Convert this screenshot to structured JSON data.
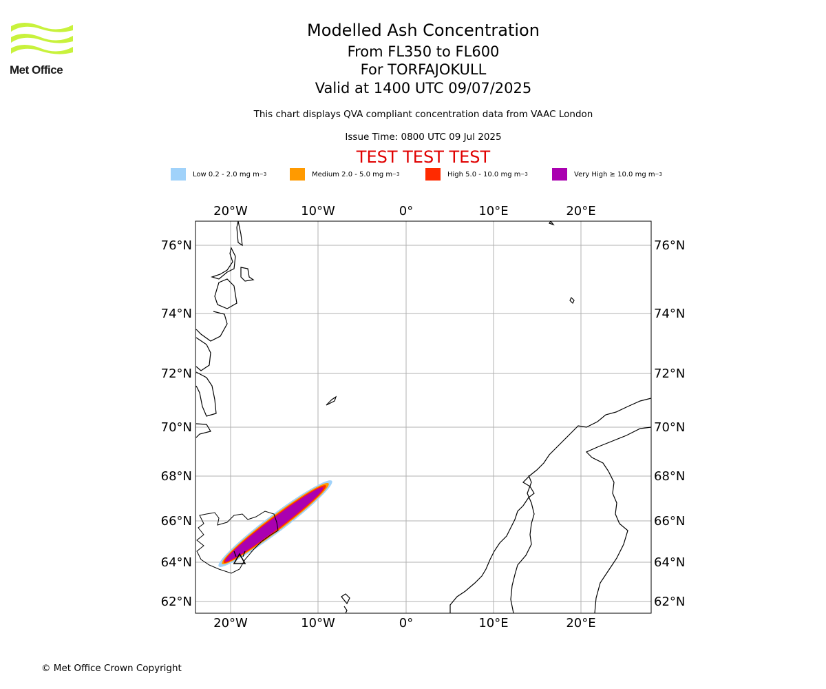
{
  "header": {
    "logo_text": "Met Office",
    "title": "Modelled Ash Concentration",
    "level_range": "From FL350 to FL600",
    "volcano_line": "For TORFAJOKULL",
    "valid_line": "Valid at 1400 UTC 09/07/2025",
    "compliance_note": "This chart displays QVA compliant concentration data from VAAC London",
    "issue_time": "Issue Time: 0800 UTC 09 Jul 2025",
    "test_banner": "TEST TEST TEST"
  },
  "legend": [
    {
      "label": "Low 0.2 - 2.0 mg m",
      "sup": "−3",
      "color": "#a0d2fa"
    },
    {
      "label": "Medium 2.0 - 5.0 mg m",
      "sup": "−3",
      "color": "#ff9a00"
    },
    {
      "label": "High 5.0 - 10.0 mg m",
      "sup": "−3",
      "color": "#ff2a00"
    },
    {
      "label": "Very High  ≥  10.0 mg m",
      "sup": "−3",
      "color": "#aa00b0"
    }
  ],
  "map": {
    "lon_ticks": [
      "20°W",
      "10°W",
      "0°",
      "10°E",
      "20°E"
    ],
    "lat_ticks": [
      "76°N",
      "74°N",
      "72°N",
      "70°N",
      "68°N",
      "66°N",
      "64°N",
      "62°N"
    ],
    "gridlines": true,
    "volcano_marker": "triangle-icon"
  },
  "footer": {
    "copyright": "© Met Office Crown Copyright"
  }
}
